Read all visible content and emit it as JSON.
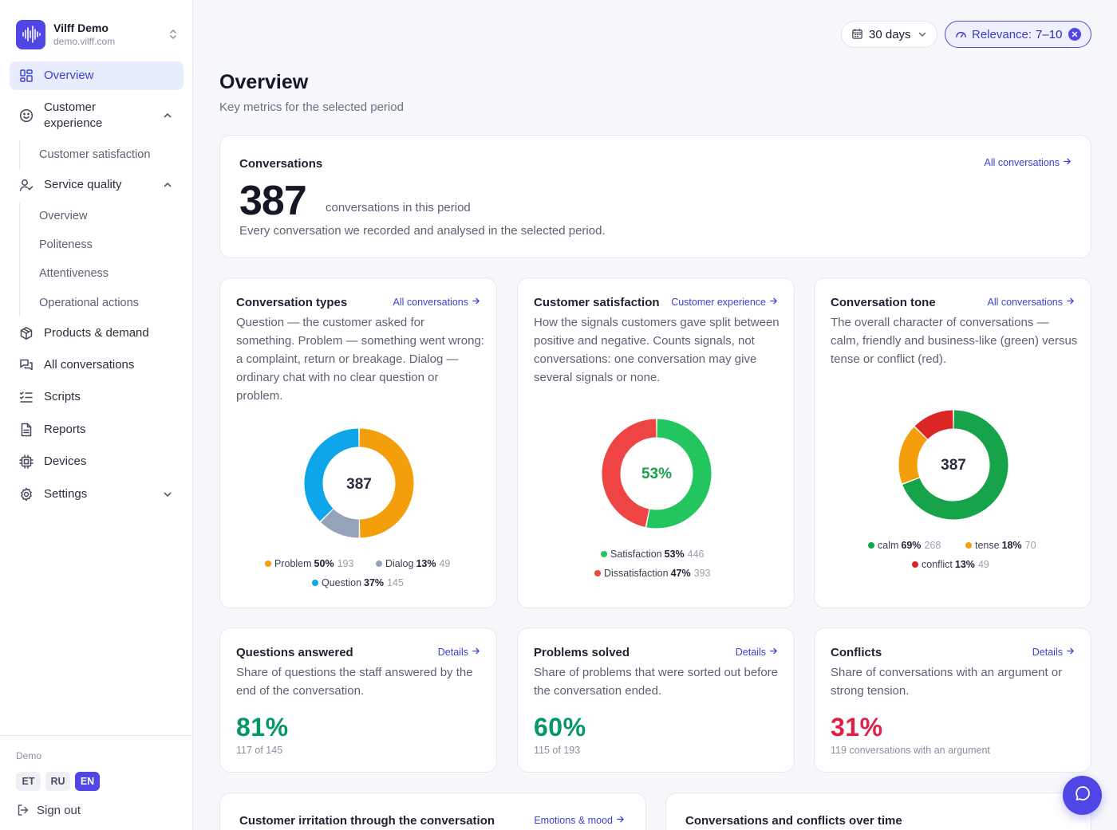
{
  "brand": {
    "name": "Vilff Demo",
    "url": "demo.vilff.com"
  },
  "nav": {
    "overview": "Overview",
    "customer_experience": "Customer experience",
    "customer_satisfaction": "Customer satisfaction",
    "service_quality": "Service quality",
    "sq_overview": "Overview",
    "politeness": "Politeness",
    "attentiveness": "Attentiveness",
    "operational_actions": "Operational actions",
    "products_demand": "Products & demand",
    "all_conversations": "All conversations",
    "scripts": "Scripts",
    "reports": "Reports",
    "devices": "Devices",
    "settings": "Settings"
  },
  "footer": {
    "demo": "Demo",
    "langs": [
      "ET",
      "RU",
      "EN"
    ],
    "active_lang": "EN",
    "sign_out": "Sign out"
  },
  "topbar": {
    "period": "30 days",
    "relevance_label": "Relevance:",
    "relevance_value": "7–10"
  },
  "page": {
    "title": "Overview",
    "subtitle": "Key metrics for the selected period"
  },
  "conversations": {
    "title": "Conversations",
    "link": "All conversations",
    "count": "387",
    "suffix": "conversations in this period",
    "desc": "Every conversation we recorded and analysed in the selected period."
  },
  "types": {
    "title": "Conversation types",
    "link": "All conversations",
    "desc": "Question — the customer asked for something. Problem — something went wrong: a complaint, return or breakage. Dialog — ordinary chat with no clear question or problem.",
    "center": "387",
    "legend": [
      {
        "label": "Problem",
        "pct": "50%",
        "count": "193",
        "color": "#f59e0b"
      },
      {
        "label": "Dialog",
        "pct": "13%",
        "count": "49",
        "color": "#94a3b8"
      },
      {
        "label": "Question",
        "pct": "37%",
        "count": "145",
        "color": "#0ea5e9"
      }
    ]
  },
  "satisfaction": {
    "title": "Customer satisfaction",
    "link": "Customer experience",
    "desc": "How the signals customers gave split between positive and negative. Counts signals, not conversations: one conversation may give several signals or none.",
    "center": "53%",
    "legend": [
      {
        "label": "Satisfaction",
        "pct": "53%",
        "count": "446",
        "color": "#22c55e"
      },
      {
        "label": "Dissatisfaction",
        "pct": "47%",
        "count": "393",
        "color": "#ef4444"
      }
    ]
  },
  "tone": {
    "title": "Conversation tone",
    "link": "All conversations",
    "desc": "The overall character of conversations — calm, friendly and business-like (green) versus tense or conflict (red).",
    "center": "387",
    "legend": [
      {
        "label": "calm",
        "pct": "69%",
        "count": "268",
        "color": "#16a34a"
      },
      {
        "label": "tense",
        "pct": "18%",
        "count": "70",
        "color": "#f59e0b"
      },
      {
        "label": "conflict",
        "pct": "13%",
        "count": "49",
        "color": "#dc2626"
      }
    ]
  },
  "chart_data": [
    {
      "type": "pie",
      "categories": [
        "Problem",
        "Dialog",
        "Question"
      ],
      "values": [
        193,
        49,
        145
      ],
      "colors": [
        "#f59e0b",
        "#94a3b8",
        "#0ea5e9"
      ]
    },
    {
      "type": "pie",
      "categories": [
        "Satisfaction",
        "Dissatisfaction"
      ],
      "values": [
        446,
        393
      ],
      "colors": [
        "#22c55e",
        "#ef4444"
      ]
    },
    {
      "type": "pie",
      "categories": [
        "calm",
        "tense",
        "conflict"
      ],
      "values": [
        268,
        70,
        49
      ],
      "colors": [
        "#16a34a",
        "#f59e0b",
        "#dc2626"
      ]
    }
  ],
  "answered": {
    "title": "Questions answered",
    "link": "Details",
    "desc": "Share of questions the staff answered by the end of the conversation.",
    "value": "81%",
    "sub": "117 of 145",
    "color": "#059669"
  },
  "solved": {
    "title": "Problems solved",
    "link": "Details",
    "desc": "Share of problems that were sorted out before the conversation ended.",
    "value": "60%",
    "sub": "115 of 193",
    "color": "#059669"
  },
  "conflicts": {
    "title": "Conflicts",
    "link": "Details",
    "desc": "Share of conversations with an argument or strong tension.",
    "value": "31%",
    "sub": "119 conversations with an argument",
    "color": "#e11d48"
  },
  "irritation": {
    "title": "Customer irritation through the conversation",
    "link": "Emotions & mood"
  },
  "overtime": {
    "title": "Conversations and conflicts over time"
  }
}
